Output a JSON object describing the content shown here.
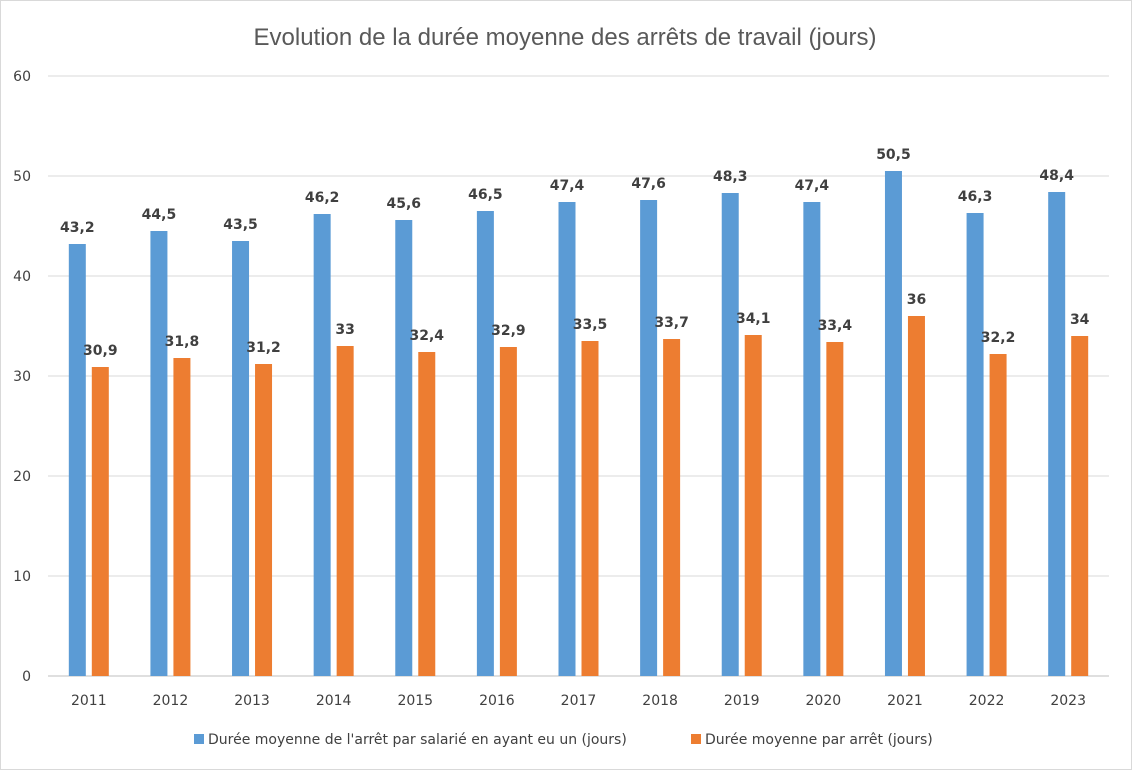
{
  "chart_data": {
    "type": "bar",
    "title": "Evolution de la durée moyenne des arrêts de travail (jours)",
    "xlabel": "",
    "ylabel": "",
    "ylim": [
      0,
      60
    ],
    "yticks": [
      0,
      10,
      20,
      30,
      40,
      50,
      60
    ],
    "grid": true,
    "legend_position": "bottom",
    "categories": [
      "2011",
      "2012",
      "2013",
      "2014",
      "2015",
      "2016",
      "2017",
      "2018",
      "2019",
      "2020",
      "2021",
      "2022",
      "2023"
    ],
    "series": [
      {
        "name": "Durée moyenne de l'arrêt par salarié en ayant eu un (jours)",
        "color": "#5b9bd5",
        "values": [
          43.2,
          44.5,
          43.5,
          46.2,
          45.6,
          46.5,
          47.4,
          47.6,
          48.3,
          47.4,
          50.5,
          46.3,
          48.4
        ],
        "labels": [
          "43,2",
          "44,5",
          "43,5",
          "46,2",
          "45,6",
          "46,5",
          "47,4",
          "47,6",
          "48,3",
          "47,4",
          "50,5",
          "46,3",
          "48,4"
        ]
      },
      {
        "name": "Durée moyenne par arrêt (jours)",
        "color": "#ed7d31",
        "values": [
          30.9,
          31.8,
          31.2,
          33,
          32.4,
          32.9,
          33.5,
          33.7,
          34.1,
          33.4,
          36,
          32.2,
          34
        ],
        "labels": [
          "30,9",
          "31,8",
          "31,2",
          "33",
          "32,4",
          "32,9",
          "33,5",
          "33,7",
          "34,1",
          "33,4",
          "36",
          "32,2",
          "34"
        ]
      }
    ]
  }
}
